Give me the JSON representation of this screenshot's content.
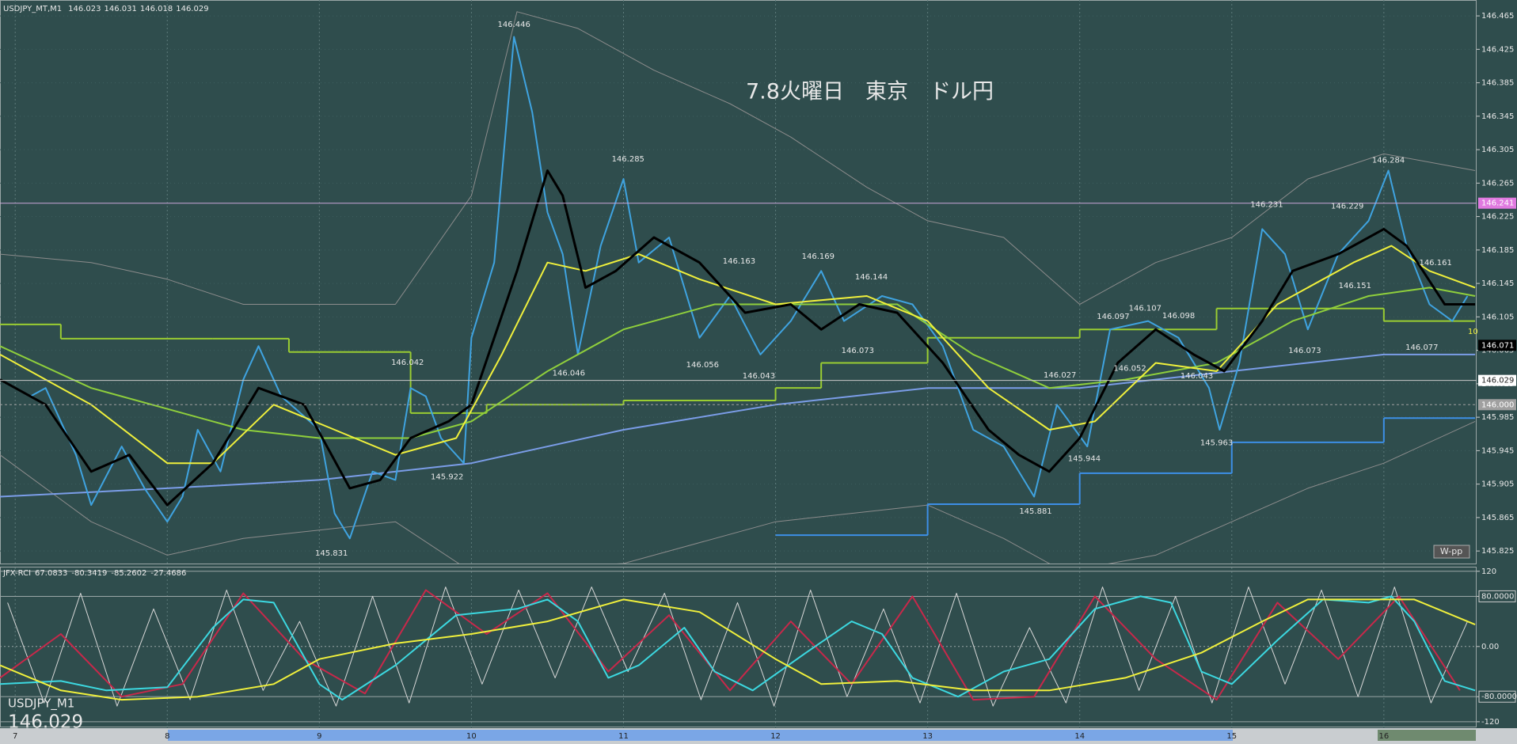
{
  "chart_data": [
    {
      "type": "line",
      "header": {
        "symbol": "USDJPY_MT,M1",
        "ohlc": [
          146.023,
          146.031,
          146.018,
          146.029
        ]
      },
      "title": "7.8火曜日　東京　ドル円",
      "xlim": [
        6.9,
        16.61
      ],
      "ylim": [
        145.81,
        146.484
      ],
      "yticks": [
        146.465,
        146.425,
        146.385,
        146.345,
        146.305,
        146.265,
        146.225,
        146.185,
        146.145,
        146.105,
        146.065,
        146.025,
        145.985,
        145.945,
        145.905,
        145.865,
        145.825
      ],
      "grid": true,
      "series": [
        {
          "color": "#8c8c8c",
          "width": 1,
          "x": [
            6.9,
            7.5,
            8.0,
            8.5,
            9.0,
            9.5,
            10.0,
            10.3,
            10.7,
            11.2,
            11.7,
            12.1,
            12.6,
            13.0,
            13.5,
            14.0,
            14.5,
            15.0,
            15.5,
            16.0,
            16.6
          ],
          "values": [
            146.18,
            146.17,
            146.15,
            146.12,
            146.12,
            146.12,
            146.25,
            146.47,
            146.45,
            146.4,
            146.36,
            146.32,
            146.26,
            146.22,
            146.2,
            146.12,
            146.17,
            146.2,
            146.27,
            146.3,
            146.28
          ]
        },
        {
          "color": "#8c8c8c",
          "width": 1,
          "x": [
            6.9,
            7.5,
            8.0,
            8.5,
            9.0,
            9.5,
            10.0,
            11.0,
            12.0,
            12.5,
            13.0,
            13.5,
            13.9,
            14.5,
            15.0,
            15.5,
            16.0,
            16.6
          ],
          "values": [
            145.94,
            145.86,
            145.82,
            145.84,
            145.85,
            145.86,
            145.8,
            145.81,
            145.86,
            145.87,
            145.88,
            145.84,
            145.8,
            145.82,
            145.86,
            145.9,
            145.93,
            145.98
          ]
        },
        {
          "color": "#9acd32",
          "width": 2,
          "step": true,
          "x": [
            6.9,
            7.3,
            8.3,
            8.8,
            9.6,
            10.1,
            11.0,
            12.0,
            12.3,
            13.0,
            14.0,
            14.9,
            16.0,
            16.6
          ],
          "values": [
            146.096,
            146.079,
            146.079,
            146.063,
            145.99,
            146.0,
            146.005,
            146.02,
            146.05,
            146.08,
            146.09,
            146.115,
            146.1,
            146.1
          ]
        },
        {
          "color": "#3d8fe6",
          "width": 2,
          "step": true,
          "x": [
            12.0,
            13.0,
            14.0,
            15.0,
            16.0,
            16.6
          ],
          "values": [
            145.844,
            145.881,
            145.918,
            145.955,
            145.984,
            145.984
          ]
        },
        {
          "color": "#7b9de8",
          "width": 2,
          "x": [
            6.9,
            8.0,
            9.0,
            10.0,
            11.0,
            12.0,
            13.0,
            14.0,
            15.0,
            16.0,
            16.6
          ],
          "values": [
            145.89,
            145.9,
            145.91,
            145.93,
            145.97,
            146.0,
            146.02,
            146.02,
            146.04,
            146.06,
            146.06
          ]
        },
        {
          "color": "#3fa3e0",
          "width": 2,
          "x": [
            6.9,
            7.1,
            7.2,
            7.4,
            7.5,
            7.7,
            7.85,
            8.0,
            8.1,
            8.2,
            8.35,
            8.5,
            8.6,
            8.75,
            9.0,
            9.1,
            9.2,
            9.35,
            9.5,
            9.6,
            9.7,
            9.8,
            9.95,
            10.0,
            10.15,
            10.28,
            10.4,
            10.5,
            10.6,
            10.7,
            10.85,
            11.0,
            11.1,
            11.3,
            11.5,
            11.7,
            11.9,
            12.1,
            12.3,
            12.45,
            12.7,
            12.9,
            13.1,
            13.3,
            13.5,
            13.7,
            13.85,
            14.05,
            14.2,
            14.45,
            14.65,
            14.85,
            14.92,
            15.05,
            15.2,
            15.35,
            15.5,
            15.7,
            15.9,
            16.03,
            16.15,
            16.3,
            16.45,
            16.55
          ],
          "values": [
            146.03,
            146.01,
            146.02,
            145.94,
            145.88,
            145.95,
            145.9,
            145.86,
            145.89,
            145.97,
            145.92,
            146.03,
            146.07,
            146.01,
            145.97,
            145.87,
            145.84,
            145.92,
            145.91,
            146.02,
            146.01,
            145.96,
            145.93,
            146.08,
            146.17,
            146.44,
            146.35,
            146.23,
            146.18,
            146.06,
            146.19,
            146.27,
            146.17,
            146.2,
            146.08,
            146.13,
            146.06,
            146.1,
            146.16,
            146.1,
            146.13,
            146.12,
            146.07,
            145.97,
            145.95,
            145.89,
            146.0,
            145.95,
            146.09,
            146.1,
            146.08,
            146.02,
            145.97,
            146.05,
            146.21,
            146.18,
            146.09,
            146.18,
            146.22,
            146.28,
            146.19,
            146.12,
            146.1,
            146.13
          ]
        },
        {
          "color": "#8fcf3c",
          "width": 2,
          "x": [
            6.9,
            7.5,
            8.5,
            9.0,
            9.6,
            10.0,
            10.5,
            11.0,
            11.6,
            12.2,
            12.8,
            13.3,
            13.8,
            14.3,
            14.9,
            15.4,
            15.9,
            16.3,
            16.6
          ],
          "values": [
            146.07,
            146.02,
            145.97,
            145.96,
            145.96,
            145.98,
            146.04,
            146.09,
            146.12,
            146.12,
            146.12,
            146.06,
            146.02,
            146.03,
            146.05,
            146.1,
            146.13,
            146.14,
            146.13
          ]
        },
        {
          "color": "#f0f03c",
          "width": 2,
          "x": [
            6.9,
            7.5,
            8.0,
            8.3,
            8.7,
            9.1,
            9.5,
            9.9,
            10.2,
            10.5,
            10.75,
            11.1,
            11.5,
            12.0,
            12.6,
            13.0,
            13.4,
            13.8,
            14.1,
            14.5,
            14.9,
            15.3,
            15.8,
            16.05,
            16.3,
            16.6
          ],
          "values": [
            146.06,
            146.0,
            145.93,
            145.93,
            146.0,
            145.97,
            145.94,
            145.96,
            146.06,
            146.17,
            146.16,
            146.18,
            146.15,
            146.12,
            146.13,
            146.1,
            146.02,
            145.97,
            145.98,
            146.05,
            146.04,
            146.12,
            146.17,
            146.19,
            146.16,
            146.14
          ]
        },
        {
          "color": "#000000",
          "width": 3,
          "x": [
            6.9,
            7.2,
            7.5,
            7.75,
            8.0,
            8.3,
            8.6,
            8.9,
            9.2,
            9.4,
            9.6,
            9.85,
            10.0,
            10.3,
            10.5,
            10.6,
            10.75,
            10.95,
            11.2,
            11.5,
            11.8,
            12.1,
            12.3,
            12.55,
            12.8,
            13.1,
            13.4,
            13.6,
            13.8,
            14.0,
            14.25,
            14.5,
            14.75,
            14.95,
            15.2,
            15.4,
            15.7,
            16.0,
            16.15,
            16.4,
            16.6
          ],
          "values": [
            146.03,
            146.0,
            145.92,
            145.94,
            145.88,
            145.93,
            146.02,
            146.0,
            145.9,
            145.91,
            145.96,
            145.98,
            146.0,
            146.16,
            146.28,
            146.25,
            146.14,
            146.16,
            146.2,
            146.17,
            146.11,
            146.12,
            146.09,
            146.12,
            146.11,
            146.05,
            145.97,
            145.94,
            145.92,
            145.96,
            146.05,
            146.09,
            146.06,
            146.04,
            146.1,
            146.16,
            146.18,
            146.21,
            146.19,
            146.12,
            146.12
          ]
        }
      ],
      "annotations": [
        {
          "x": 10.28,
          "value": 146.446
        },
        {
          "x": 11.03,
          "value": 146.285
        },
        {
          "x": 9.58,
          "value": 146.042
        },
        {
          "x": 9.08,
          "value": 145.831
        },
        {
          "x": 9.84,
          "value": 145.922
        },
        {
          "x": 10.64,
          "value": 146.046
        },
        {
          "x": 11.76,
          "value": 146.163
        },
        {
          "x": 11.52,
          "value": 146.056
        },
        {
          "x": 11.89,
          "value": 146.043
        },
        {
          "x": 12.28,
          "value": 146.169
        },
        {
          "x": 12.63,
          "value": 146.144
        },
        {
          "x": 12.54,
          "value": 146.073
        },
        {
          "x": 13.71,
          "value": 145.881
        },
        {
          "x": 13.87,
          "value": 146.027
        },
        {
          "x": 14.03,
          "value": 145.944
        },
        {
          "x": 14.22,
          "value": 146.097
        },
        {
          "x": 14.43,
          "value": 146.107
        },
        {
          "x": 14.33,
          "value": 146.052
        },
        {
          "x": 14.65,
          "value": 146.098
        },
        {
          "x": 14.77,
          "value": 146.043
        },
        {
          "x": 14.9,
          "value": 145.963
        },
        {
          "x": 15.23,
          "value": 146.231
        },
        {
          "x": 15.48,
          "value": 146.073
        },
        {
          "x": 15.76,
          "value": 146.229
        },
        {
          "x": 15.81,
          "value": 146.151
        },
        {
          "x": 16.03,
          "value": 146.284
        },
        {
          "x": 16.34,
          "value": 146.161
        },
        {
          "x": 16.25,
          "value": 146.077
        }
      ],
      "hlines": [
        {
          "value": 146.241,
          "color": "#c9a6d8",
          "tag_color": "#e07ae0",
          "text_color": "#ffffff",
          "style": "solid"
        },
        {
          "value": 146.071,
          "color": "#000000",
          "tag_color": "#000000",
          "text_color": "#ffffff",
          "style": "none"
        },
        {
          "value": 146.029,
          "color": "#c8c8c8",
          "tag_color": "#ffffff",
          "text_color": "#222222",
          "style": "solid"
        },
        {
          "value": 146,
          "label": "146.000",
          "color": "#a0a0a0",
          "tag_color": "#a0a0a0",
          "text_color": "#ffffff",
          "style": "dotted"
        }
      ],
      "symbol_label": "USDJPY_M1",
      "last_price": 146.029,
      "pivot_label": "W-pp",
      "marker_text": "10"
    },
    {
      "type": "line",
      "header": {
        "name": "JFX-RCI",
        "values": [
          67.0833,
          -80.3419,
          -85.2602,
          -27.4686
        ]
      },
      "xlim": [
        6.9,
        16.61
      ],
      "ylim": [
        -129,
        126
      ],
      "xticks": [
        7,
        8,
        9,
        10,
        11,
        12,
        13,
        14,
        15,
        16
      ],
      "yticks": [
        120,
        {
          "value": 80,
          "label": "80.0000"
        },
        {
          "value": 0,
          "label": "0.00"
        },
        {
          "value": -80,
          "label": "-80.0000"
        },
        -120
      ],
      "series": [
        {
          "color": "#d8d8d8",
          "width": 1,
          "x": [
            6.95,
            7.19,
            7.43,
            7.67,
            7.91,
            8.15,
            8.39,
            8.63,
            8.87,
            9.11,
            9.35,
            9.59,
            9.83,
            10.07,
            10.31,
            10.55,
            10.79,
            11.03,
            11.27,
            11.51,
            11.75,
            11.99,
            12.23,
            12.47,
            12.71,
            12.95,
            13.19,
            13.43,
            13.67,
            13.91,
            14.15,
            14.39,
            14.63,
            14.87,
            15.11,
            15.35,
            15.59,
            15.83,
            16.07,
            16.31,
            16.55
          ],
          "values": [
            70,
            -90,
            85,
            -95,
            60,
            -85,
            90,
            -70,
            40,
            -95,
            80,
            -90,
            95,
            -60,
            90,
            -50,
            95,
            -40,
            85,
            -85,
            70,
            -95,
            90,
            -80,
            60,
            -90,
            85,
            -95,
            30,
            -90,
            95,
            -70,
            80,
            -90,
            95,
            -60,
            90,
            -80,
            95,
            -90,
            40
          ]
        },
        {
          "color": "#c8284a",
          "width": 2,
          "x": [
            6.9,
            7.3,
            7.7,
            8.1,
            8.5,
            8.9,
            9.3,
            9.7,
            10.1,
            10.5,
            10.9,
            11.3,
            11.7,
            12.1,
            12.5,
            12.9,
            13.3,
            13.7,
            14.1,
            14.5,
            14.9,
            15.3,
            15.7,
            16.1,
            16.5
          ],
          "values": [
            -50,
            20,
            -80,
            -60,
            85,
            -20,
            -75,
            90,
            20,
            85,
            -40,
            50,
            -70,
            40,
            -60,
            80,
            -85,
            -80,
            80,
            -20,
            -85,
            70,
            -20,
            80,
            -70
          ]
        },
        {
          "color": "#3cd8e0",
          "width": 2,
          "x": [
            6.9,
            7.3,
            7.6,
            8.0,
            8.3,
            8.5,
            8.7,
            9.0,
            9.15,
            9.5,
            9.9,
            10.3,
            10.5,
            10.7,
            10.9,
            11.1,
            11.4,
            11.6,
            11.85,
            12.2,
            12.5,
            12.7,
            12.9,
            13.2,
            13.5,
            13.8,
            14.1,
            14.4,
            14.6,
            14.8,
            15.0,
            15.3,
            15.6,
            15.9,
            16.05,
            16.2,
            16.4,
            16.6
          ],
          "values": [
            -60,
            -55,
            -70,
            -65,
            30,
            75,
            70,
            -60,
            -85,
            -30,
            50,
            60,
            75,
            40,
            -50,
            -30,
            30,
            -40,
            -70,
            -10,
            40,
            20,
            -50,
            -80,
            -40,
            -20,
            60,
            80,
            70,
            -40,
            -60,
            10,
            75,
            70,
            80,
            40,
            -55,
            -70
          ]
        },
        {
          "color": "#f0f03c",
          "width": 2,
          "x": [
            6.9,
            7.3,
            7.7,
            8.2,
            8.7,
            9.0,
            9.5,
            10.0,
            10.5,
            11.0,
            11.5,
            12.0,
            12.3,
            12.8,
            13.3,
            13.8,
            14.3,
            14.8,
            15.2,
            15.5,
            15.9,
            16.2,
            16.6
          ],
          "values": [
            -30,
            -70,
            -85,
            -80,
            -60,
            -20,
            5,
            20,
            40,
            75,
            55,
            -20,
            -60,
            -55,
            -70,
            -70,
            -50,
            -10,
            40,
            75,
            75,
            75,
            35
          ]
        }
      ]
    }
  ]
}
